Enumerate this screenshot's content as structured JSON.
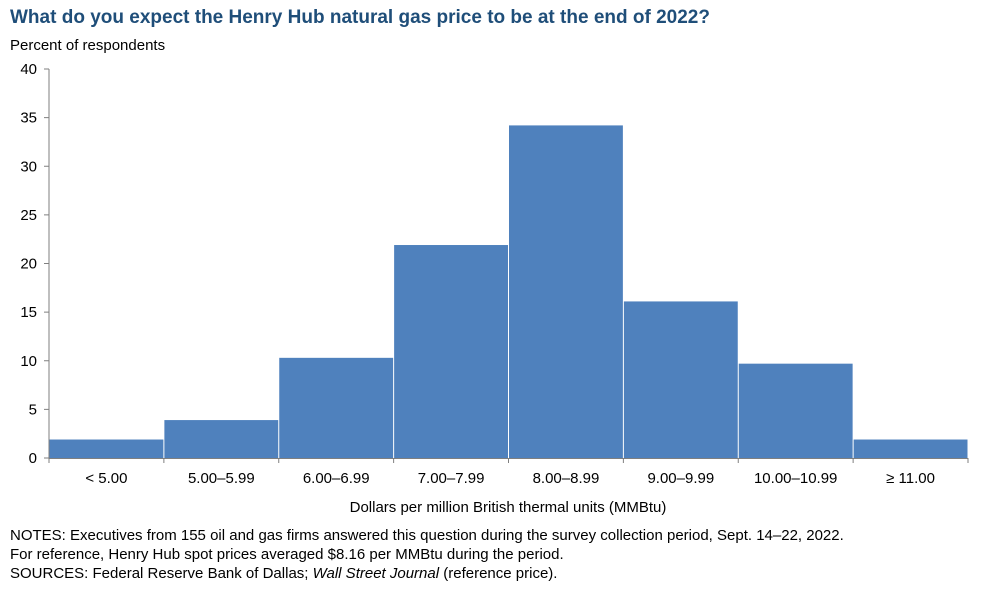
{
  "chart_data": {
    "type": "bar",
    "title": "What do you expect the Henry Hub natural gas price to be at the end of 2022?",
    "ylabel": "Percent of respondents",
    "xlabel": "Dollars per million British thermal units (MMBtu)",
    "categories": [
      "< 5.00",
      "5.00–5.99",
      "6.00–6.99",
      "7.00–7.99",
      "8.00–8.99",
      "9.00–9.99",
      "10.00–10.99",
      "≥ 11.00"
    ],
    "values": [
      1.9,
      3.9,
      10.3,
      21.9,
      34.2,
      16.1,
      9.7,
      1.9
    ],
    "ylim": [
      0,
      40
    ],
    "yticks": [
      0,
      5,
      10,
      15,
      20,
      25,
      30,
      35,
      40
    ],
    "grid": false,
    "bar_color": "#4f81bd"
  },
  "notes": {
    "line1": "NOTES: Executives from 155 oil and gas firms answered this question during the survey collection period, Sept. 14–22, 2022.",
    "line2": "For reference, Henry Hub spot prices averaged $8.16 per MMBtu during the period.",
    "sources_prefix": "SOURCES: Federal Reserve Bank of Dallas; ",
    "sources_italic": "Wall Street Journal",
    "sources_suffix": " (reference price)."
  }
}
